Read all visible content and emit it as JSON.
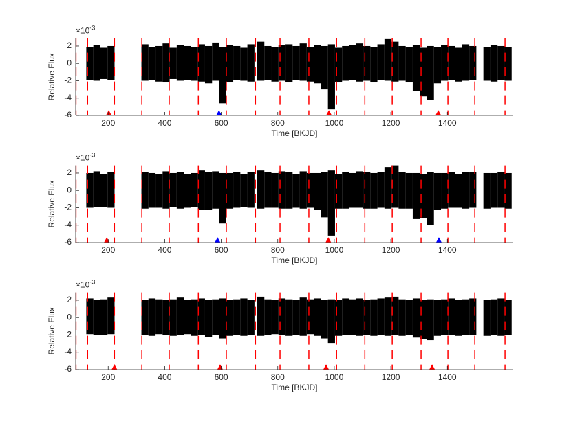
{
  "chart_data": [
    {
      "type": "range",
      "xlabel": "Time [BKJD]",
      "ylabel": "Relative Flux",
      "exponent_base": "×10",
      "exponent": "-3",
      "xlim": [
        85,
        1633
      ],
      "ylim": [
        -6,
        2.9
      ],
      "xticks": [
        200,
        400,
        600,
        800,
        1000,
        1200,
        1400
      ],
      "yticks": [
        -6,
        -4,
        -2,
        0,
        2
      ],
      "color": "#000000",
      "vline_color": "#ff0000",
      "vlines": [
        86,
        127,
        222,
        319,
        416,
        519,
        618,
        721,
        808,
        910,
        1008,
        1108,
        1205,
        1307,
        1402,
        1497,
        1604
      ],
      "x": [
        135,
        160,
        185,
        210,
        330,
        355,
        380,
        405,
        430,
        455,
        480,
        505,
        530,
        555,
        580,
        605,
        630,
        655,
        680,
        705,
        740,
        765,
        790,
        815,
        840,
        865,
        890,
        915,
        940,
        965,
        990,
        1015,
        1040,
        1065,
        1090,
        1115,
        1140,
        1165,
        1190,
        1215,
        1240,
        1265,
        1290,
        1315,
        1340,
        1365,
        1390,
        1415,
        1440,
        1465,
        1490,
        1540,
        1565,
        1590,
        1615
      ],
      "high": [
        1.9,
        2.1,
        1.8,
        2.0,
        2.2,
        1.9,
        2.0,
        2.3,
        1.8,
        2.1,
        2.0,
        1.9,
        2.2,
        2.0,
        2.4,
        1.9,
        2.1,
        2.0,
        1.8,
        2.2,
        2.5,
        2.0,
        1.9,
        2.1,
        2.2,
        2.0,
        2.3,
        1.9,
        2.1,
        2.0,
        2.2,
        1.8,
        2.0,
        2.1,
        2.3,
        2.0,
        1.9,
        2.2,
        2.8,
        2.5,
        2.0,
        1.9,
        2.1,
        1.8,
        2.0,
        1.9,
        2.1,
        2.0,
        1.8,
        2.2,
        2.0,
        1.9,
        2.1,
        2.0,
        1.9
      ],
      "low": [
        -1.9,
        -2.0,
        -1.8,
        -1.9,
        -2.0,
        -1.9,
        -2.1,
        -2.2,
        -1.8,
        -2.0,
        -1.9,
        -2.0,
        -2.1,
        -2.3,
        -2.0,
        -4.6,
        -2.2,
        -1.9,
        -2.0,
        -2.1,
        -2.0,
        -1.9,
        -2.1,
        -2.0,
        -2.2,
        -1.9,
        -2.0,
        -2.1,
        -2.3,
        -3.0,
        -5.3,
        -2.2,
        -2.0,
        -1.9,
        -2.1,
        -2.0,
        -2.2,
        -1.9,
        -2.0,
        -2.1,
        -2.0,
        -2.2,
        -3.2,
        -3.8,
        -4.2,
        -2.3,
        -2.0,
        -1.9,
        -2.1,
        -2.0,
        -1.9,
        -2.0,
        -2.1,
        -1.9,
        -2.0
      ],
      "markers": [
        {
          "x": 202,
          "y": -5.7,
          "color": "#ff0000"
        },
        {
          "x": 592,
          "y": -5.7,
          "color": "#0000ff"
        },
        {
          "x": 981,
          "y": -5.7,
          "color": "#ff0000"
        },
        {
          "x": 1368,
          "y": -5.7,
          "color": "#ff0000"
        }
      ]
    },
    {
      "type": "range",
      "xlabel": "Time [BKJD]",
      "ylabel": "Relative Flux",
      "exponent_base": "×10",
      "exponent": "-3",
      "xlim": [
        85,
        1633
      ],
      "ylim": [
        -6,
        2.9
      ],
      "xticks": [
        200,
        400,
        600,
        800,
        1000,
        1200,
        1400
      ],
      "yticks": [
        -6,
        -4,
        -2,
        0,
        2
      ],
      "color": "#000000",
      "vline_color": "#ff0000",
      "vlines": [
        86,
        127,
        222,
        319,
        416,
        519,
        618,
        721,
        808,
        910,
        1008,
        1108,
        1205,
        1307,
        1402,
        1497,
        1604
      ],
      "x": [
        135,
        160,
        185,
        210,
        330,
        355,
        380,
        405,
        430,
        455,
        480,
        505,
        530,
        555,
        580,
        605,
        630,
        655,
        680,
        705,
        740,
        765,
        790,
        815,
        840,
        865,
        890,
        915,
        940,
        965,
        990,
        1015,
        1040,
        1065,
        1090,
        1115,
        1140,
        1165,
        1190,
        1215,
        1240,
        1265,
        1290,
        1315,
        1340,
        1365,
        1390,
        1415,
        1440,
        1465,
        1490,
        1540,
        1565,
        1590,
        1615
      ],
      "high": [
        2.0,
        2.2,
        1.9,
        2.1,
        2.1,
        2.0,
        1.9,
        2.2,
        2.0,
        2.1,
        1.9,
        2.0,
        2.3,
        2.1,
        2.2,
        2.0,
        2.0,
        2.1,
        1.9,
        2.1,
        2.3,
        2.1,
        2.0,
        2.2,
        2.1,
        1.9,
        2.2,
        2.0,
        2.0,
        2.1,
        2.3,
        1.9,
        2.1,
        2.0,
        2.2,
        2.1,
        2.0,
        2.1,
        2.7,
        2.9,
        2.1,
        2.0,
        2.0,
        1.9,
        2.1,
        2.0,
        2.0,
        2.1,
        1.9,
        2.1,
        2.1,
        2.0,
        2.0,
        2.1,
        2.0
      ],
      "low": [
        -2.0,
        -1.9,
        -1.9,
        -2.0,
        -2.1,
        -2.0,
        -2.0,
        -2.1,
        -1.9,
        -2.1,
        -2.0,
        -1.9,
        -2.2,
        -2.2,
        -2.1,
        -3.8,
        -2.1,
        -2.0,
        -1.9,
        -2.0,
        -2.1,
        -2.0,
        -2.0,
        -2.1,
        -2.1,
        -2.0,
        -2.1,
        -2.0,
        -2.2,
        -3.1,
        -5.2,
        -2.1,
        -2.1,
        -2.0,
        -2.0,
        -2.1,
        -2.1,
        -2.0,
        -2.1,
        -2.0,
        -2.1,
        -2.1,
        -3.3,
        -3.2,
        -4.0,
        -2.2,
        -2.1,
        -2.0,
        -2.0,
        -2.1,
        -2.0,
        -2.1,
        -2.0,
        -2.0,
        -2.1
      ],
      "markers": [
        {
          "x": 195,
          "y": -5.7,
          "color": "#ff0000"
        },
        {
          "x": 587,
          "y": -5.7,
          "color": "#0000ff"
        },
        {
          "x": 979,
          "y": -5.7,
          "color": "#ff0000"
        },
        {
          "x": 1370,
          "y": -5.7,
          "color": "#0000ff"
        }
      ]
    },
    {
      "type": "range",
      "xlabel": "Time [BKJD]",
      "ylabel": "Relative Flux",
      "exponent_base": "×10",
      "exponent": "-3",
      "xlim": [
        85,
        1633
      ],
      "ylim": [
        -6,
        2.9
      ],
      "xticks": [
        200,
        400,
        600,
        800,
        1000,
        1200,
        1400
      ],
      "yticks": [
        -6,
        -4,
        -2,
        0,
        2
      ],
      "color": "#000000",
      "vline_color": "#ff0000",
      "vlines": [
        86,
        127,
        222,
        319,
        416,
        519,
        618,
        721,
        808,
        910,
        1008,
        1108,
        1205,
        1307,
        1402,
        1497,
        1604
      ],
      "x": [
        135,
        160,
        185,
        210,
        330,
        355,
        380,
        405,
        430,
        455,
        480,
        505,
        530,
        555,
        580,
        605,
        630,
        655,
        680,
        705,
        740,
        765,
        790,
        815,
        840,
        865,
        890,
        915,
        940,
        965,
        990,
        1015,
        1040,
        1065,
        1090,
        1115,
        1140,
        1165,
        1190,
        1215,
        1240,
        1265,
        1290,
        1315,
        1340,
        1365,
        1390,
        1415,
        1440,
        1465,
        1490,
        1540,
        1565,
        1590,
        1615
      ],
      "high": [
        2.2,
        2.0,
        2.1,
        2.3,
        2.0,
        2.2,
        2.1,
        2.0,
        2.1,
        2.3,
        2.0,
        2.1,
        2.2,
        2.0,
        2.1,
        2.2,
        2.0,
        2.1,
        2.2,
        2.0,
        2.4,
        2.1,
        2.0,
        2.2,
        2.1,
        2.0,
        2.3,
        2.1,
        2.2,
        2.0,
        2.1,
        2.0,
        2.2,
        2.1,
        2.2,
        2.0,
        2.1,
        2.2,
        2.3,
        2.4,
        2.1,
        2.0,
        2.2,
        2.0,
        2.1,
        2.0,
        2.1,
        2.2,
        2.0,
        2.1,
        2.2,
        2.0,
        2.1,
        2.2,
        2.0
      ],
      "low": [
        -1.9,
        -2.0,
        -2.0,
        -1.9,
        -2.0,
        -2.1,
        -1.9,
        -2.0,
        -2.1,
        -2.0,
        -1.9,
        -2.1,
        -2.0,
        -2.2,
        -2.0,
        -2.4,
        -2.1,
        -2.0,
        -2.1,
        -2.0,
        -2.1,
        -2.0,
        -1.9,
        -2.0,
        -2.1,
        -2.0,
        -2.1,
        -1.9,
        -2.1,
        -2.4,
        -3.0,
        -2.1,
        -2.0,
        -2.0,
        -2.1,
        -2.0,
        -2.1,
        -2.0,
        -2.1,
        -2.0,
        -2.1,
        -2.0,
        -2.3,
        -2.5,
        -2.6,
        -2.1,
        -2.0,
        -2.0,
        -2.1,
        -2.0,
        -2.0,
        -2.1,
        -2.0,
        -2.1,
        -2.0
      ],
      "markers": [
        {
          "x": 222,
          "y": -5.7,
          "color": "#ff0000"
        },
        {
          "x": 596,
          "y": -5.7,
          "color": "#ff0000"
        },
        {
          "x": 971,
          "y": -5.7,
          "color": "#ff0000"
        },
        {
          "x": 1346,
          "y": -5.7,
          "color": "#ff0000"
        }
      ]
    }
  ]
}
